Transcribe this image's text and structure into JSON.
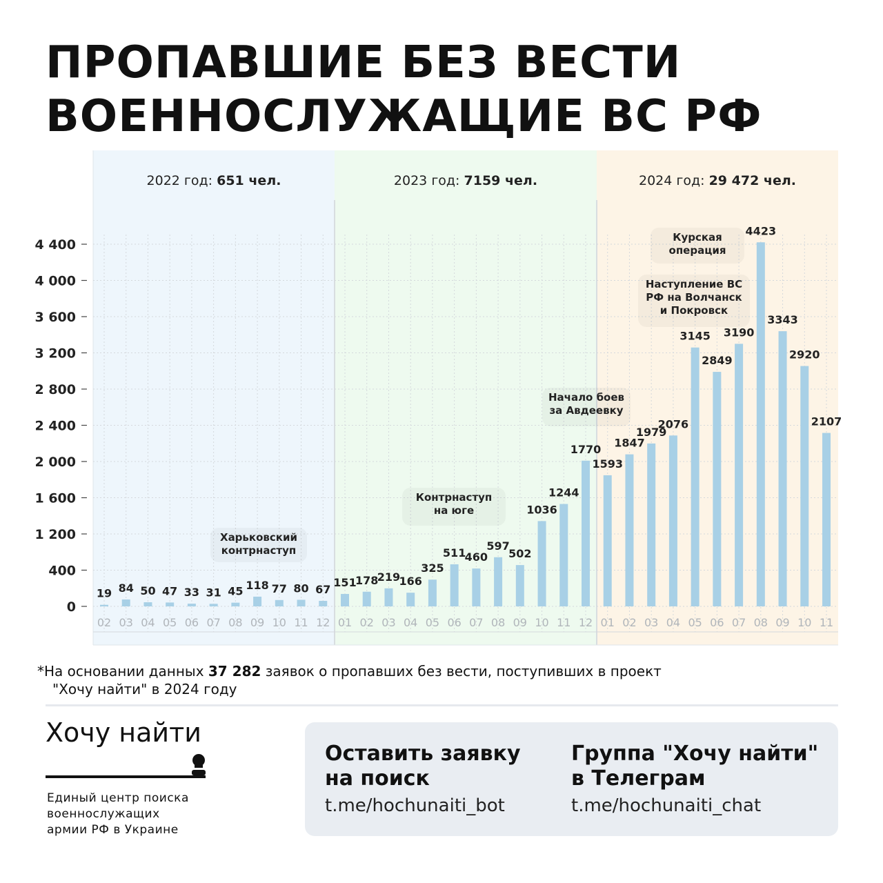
{
  "title": [
    "ПРОПАВШИЕ БЕЗ ВЕСТИ",
    "ВОЕННОСЛУЖАЩИЕ ВС РФ"
  ],
  "chart_data": {
    "type": "bar",
    "title": "",
    "xlabel": "",
    "ylabel": "",
    "ylim": [
      0,
      4400
    ],
    "y_tick_labels": [
      "0",
      "400",
      "1 200",
      "1 600",
      "2 000",
      "2 400",
      "2 800",
      "3 200",
      "3 600",
      "4 000",
      "4 400"
    ],
    "grid": true,
    "bar_color": "#a8d0e6",
    "periods": [
      {
        "label": "2022 год:",
        "total": "651 чел.",
        "color": "#eef6fc",
        "months": [
          "02",
          "03",
          "04",
          "05",
          "06",
          "07",
          "08",
          "09",
          "10",
          "11",
          "12"
        ],
        "values": [
          19,
          84,
          50,
          47,
          33,
          31,
          45,
          118,
          77,
          80,
          67
        ]
      },
      {
        "label": "2023 год:",
        "total": "7159 чел.",
        "color": "#eefaef",
        "months": [
          "01",
          "02",
          "03",
          "04",
          "05",
          "06",
          "07",
          "08",
          "09",
          "10",
          "11",
          "12"
        ],
        "values": [
          151,
          178,
          219,
          166,
          325,
          511,
          460,
          597,
          502,
          1036,
          1244,
          1770
        ]
      },
      {
        "label": "2024 год:",
        "total": "29 472 чел.",
        "color": "#fdf4e6",
        "months": [
          "01",
          "02",
          "03",
          "04",
          "05",
          "06",
          "07",
          "08",
          "09",
          "10",
          "11"
        ],
        "values": [
          1593,
          1847,
          1979,
          2076,
          3145,
          2849,
          3190,
          4423,
          3343,
          2920,
          2107
        ]
      }
    ],
    "annotations": [
      {
        "text": [
          "Харьковский",
          "контрнаступ"
        ]
      },
      {
        "text": [
          "Контрнаступ",
          "на юге"
        ]
      },
      {
        "text": [
          "Начало боев",
          "за Авдеевку"
        ]
      },
      {
        "text": [
          "Наступление ВС",
          "РФ на Волчанск",
          "и Покровск"
        ]
      },
      {
        "text": [
          "Курская",
          "операция"
        ]
      }
    ]
  },
  "footnote": {
    "prefix": "*На основании данных ",
    "number": "37 282",
    "suffix": " заявок о пропавших без вести, поступивших в проект",
    "line2": "\"Хочу найти\" в 2024 году"
  },
  "brand": {
    "name": "Хочу найти",
    "subtitle": [
      "Единый центр поиска",
      "военнослужащих",
      "армии РФ в Украине"
    ]
  },
  "cta": [
    {
      "heading": [
        "Оставить заявку",
        "на поиск"
      ],
      "link": "t.me/hochunaiti_bot"
    },
    {
      "heading": [
        "Группа \"Хочу найти\"",
        "в Телеграм"
      ],
      "link": "t.me/hochunaiti_chat"
    }
  ]
}
